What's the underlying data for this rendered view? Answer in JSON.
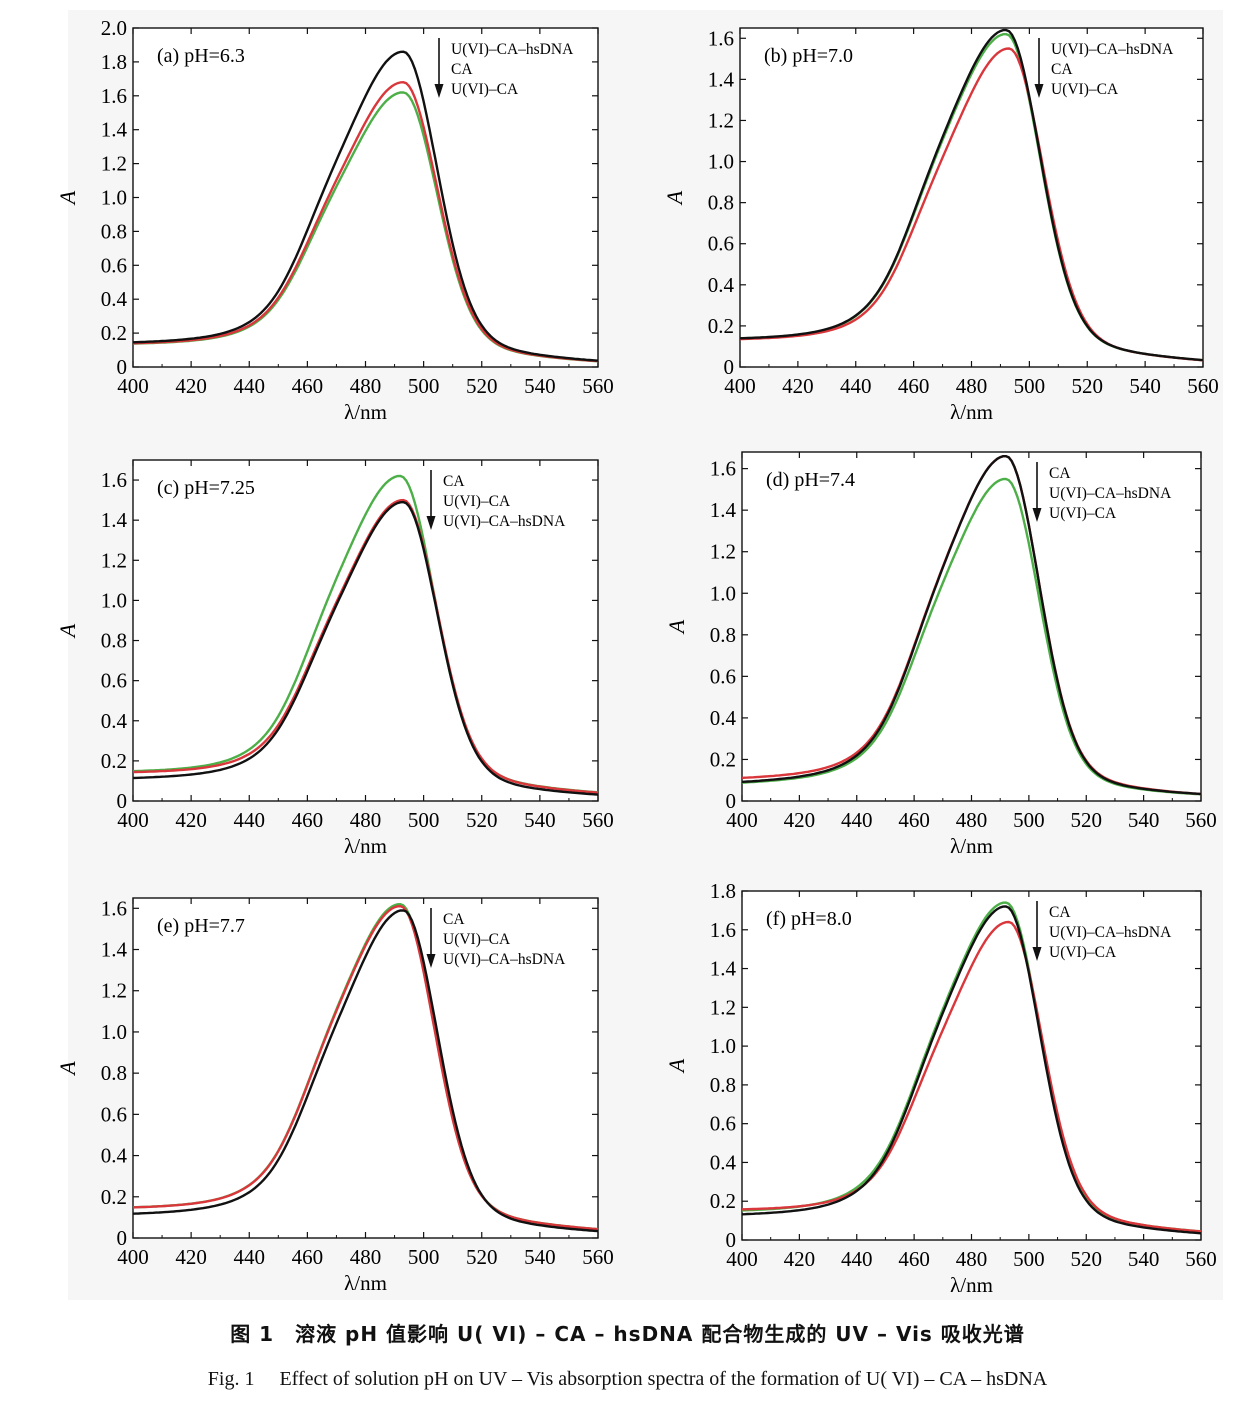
{
  "caption": {
    "cn": "图 1　溶液 pH 值影响 U( VI) – CA – hsDNA 配合物生成的 UV – Vis 吸收光谱",
    "en": "Fig. 1　 Effect of solution pH on UV – Vis absorption spectra of the formation of U( VI) – CA – hsDNA"
  },
  "series_colors": {
    "U(VI)–CA–hsDNA": "#111111",
    "CA": "#d9373b",
    "U(VI)–CA": "#4caf47"
  },
  "chart_data": [
    {
      "type": "line",
      "panel_label": "(a)  pH=6.3",
      "xlabel": "λ/nm",
      "ylabel": "A",
      "xlim": [
        400,
        560
      ],
      "ylim": [
        0,
        2.0
      ],
      "xticks": [
        400,
        420,
        440,
        460,
        480,
        500,
        520,
        540,
        560
      ],
      "yticks": [
        0,
        0.2,
        0.4,
        0.6,
        0.8,
        1.0,
        1.2,
        1.4,
        1.6,
        1.8,
        2.0
      ],
      "legend_order": [
        "U(VI)–CA–hsDNA",
        "CA",
        "U(VI)–CA"
      ],
      "series": [
        {
          "name": "U(VI)–CA–hsDNA",
          "peak": 1.86,
          "peak_x": 493,
          "base_left": 0.09,
          "base_right": 0.01
        },
        {
          "name": "CA",
          "peak": 1.68,
          "peak_x": 493,
          "base_left": 0.09,
          "base_right": 0.01
        },
        {
          "name": "U(VI)–CA",
          "peak": 1.62,
          "peak_x": 493,
          "base_left": 0.09,
          "base_right": 0.01
        }
      ]
    },
    {
      "type": "line",
      "panel_label": "(b)  pH=7.0",
      "xlabel": "λ/nm",
      "ylabel": "A",
      "xlim": [
        400,
        560
      ],
      "ylim": [
        0,
        1.65
      ],
      "xticks": [
        400,
        420,
        440,
        460,
        480,
        500,
        520,
        540,
        560
      ],
      "yticks": [
        0,
        0.2,
        0.4,
        0.6,
        0.8,
        1.0,
        1.2,
        1.4,
        1.6
      ],
      "legend_order": [
        "U(VI)–CA–hsDNA",
        "CA",
        "U(VI)–CA"
      ],
      "series": [
        {
          "name": "U(VI)–CA–hsDNA",
          "peak": 1.64,
          "peak_x": 492,
          "base_left": 0.09,
          "base_right": 0.01
        },
        {
          "name": "CA",
          "peak": 1.55,
          "peak_x": 493,
          "base_left": 0.09,
          "base_right": 0.01
        },
        {
          "name": "U(VI)–CA",
          "peak": 1.62,
          "peak_x": 492,
          "base_left": 0.09,
          "base_right": 0.01
        }
      ]
    },
    {
      "type": "line",
      "panel_label": "(c)  pH=7.25",
      "xlabel": "λ/nm",
      "ylabel": "A",
      "xlim": [
        400,
        560
      ],
      "ylim": [
        0,
        1.7
      ],
      "xticks": [
        400,
        420,
        440,
        460,
        480,
        500,
        520,
        540,
        560
      ],
      "yticks": [
        0,
        0.2,
        0.4,
        0.6,
        0.8,
        1.0,
        1.2,
        1.4,
        1.6
      ],
      "legend_order": [
        "CA",
        "U(VI)–CA",
        "U(VI)–CA–hsDNA"
      ],
      "series": [
        {
          "name": "CA",
          "peak": 1.5,
          "peak_x": 493,
          "base_left": 0.1,
          "base_right": 0.02
        },
        {
          "name": "U(VI)–CA",
          "peak": 1.62,
          "peak_x": 492,
          "base_left": 0.1,
          "base_right": 0.02
        },
        {
          "name": "U(VI)–CA–hsDNA",
          "peak": 1.49,
          "peak_x": 493,
          "base_left": 0.07,
          "base_right": 0.01
        }
      ]
    },
    {
      "type": "line",
      "panel_label": "(d)  pH=7.4",
      "xlabel": "λ/nm",
      "ylabel": "A",
      "xlim": [
        400,
        560
      ],
      "ylim": [
        0,
        1.68
      ],
      "xticks": [
        400,
        420,
        440,
        460,
        480,
        500,
        520,
        540,
        560
      ],
      "yticks": [
        0,
        0.2,
        0.4,
        0.6,
        0.8,
        1.0,
        1.2,
        1.4,
        1.6
      ],
      "legend_order": [
        "CA",
        "U(VI)–CA–hsDNA",
        "U(VI)–CA"
      ],
      "series": [
        {
          "name": "CA",
          "peak": 1.66,
          "peak_x": 492,
          "base_left": 0.06,
          "base_right": 0.01
        },
        {
          "name": "U(VI)–CA–hsDNA",
          "peak": 1.66,
          "peak_x": 492,
          "base_left": 0.04,
          "base_right": 0.01
        },
        {
          "name": "U(VI)–CA",
          "peak": 1.55,
          "peak_x": 492,
          "base_left": 0.04,
          "base_right": 0.01
        }
      ]
    },
    {
      "type": "line",
      "panel_label": "(e)  pH=7.7",
      "xlabel": "λ/nm",
      "ylabel": "A",
      "xlim": [
        400,
        560
      ],
      "ylim": [
        0,
        1.65
      ],
      "xticks": [
        400,
        420,
        440,
        460,
        480,
        500,
        520,
        540,
        560
      ],
      "yticks": [
        0,
        0.2,
        0.4,
        0.6,
        0.8,
        1.0,
        1.2,
        1.4,
        1.6
      ],
      "legend_order": [
        "CA",
        "U(VI)–CA",
        "U(VI)–CA–hsDNA"
      ],
      "series": [
        {
          "name": "CA",
          "peak": 1.61,
          "peak_x": 492,
          "base_left": 0.1,
          "base_right": 0.02
        },
        {
          "name": "U(VI)–CA",
          "peak": 1.62,
          "peak_x": 492,
          "base_left": 0.1,
          "base_right": 0.02
        },
        {
          "name": "U(VI)–CA–hsDNA",
          "peak": 1.59,
          "peak_x": 493,
          "base_left": 0.07,
          "base_right": 0.01
        }
      ]
    },
    {
      "type": "line",
      "panel_label": "(f)  pH=8.0",
      "xlabel": "λ/nm",
      "ylabel": "A",
      "xlim": [
        400,
        560
      ],
      "ylim": [
        0,
        1.8
      ],
      "xticks": [
        400,
        420,
        440,
        460,
        480,
        500,
        520,
        540,
        560
      ],
      "yticks": [
        0,
        0.2,
        0.4,
        0.6,
        0.8,
        1.0,
        1.2,
        1.4,
        1.6,
        1.8
      ],
      "legend_order": [
        "CA",
        "U(VI)–CA–hsDNA",
        "U(VI)–CA"
      ],
      "series": [
        {
          "name": "CA",
          "peak": 1.64,
          "peak_x": 493,
          "base_left": 0.11,
          "base_right": 0.02
        },
        {
          "name": "U(VI)–CA–hsDNA",
          "peak": 1.72,
          "peak_x": 492,
          "base_left": 0.08,
          "base_right": 0.01
        },
        {
          "name": "U(VI)–CA",
          "peak": 1.74,
          "peak_x": 492,
          "base_left": 0.1,
          "base_right": 0.02
        }
      ]
    }
  ]
}
